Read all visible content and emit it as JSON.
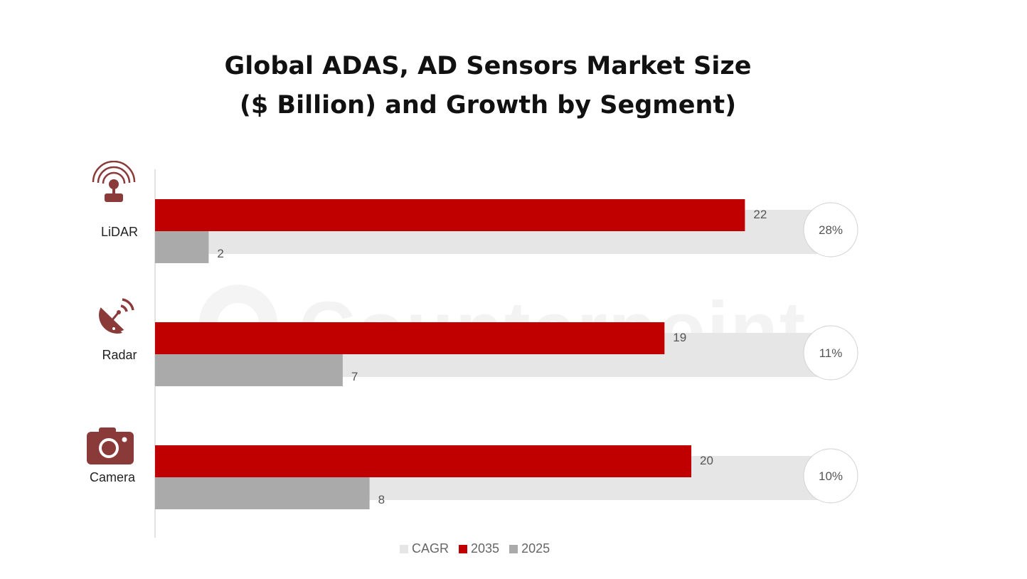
{
  "chart_data": {
    "type": "bar",
    "orientation": "horizontal",
    "title_line1": "Global ADAS, AD Sensors Market Size",
    "title_line2": "($ Billion) and Growth by Segment)",
    "categories": [
      "LiDAR",
      "Radar",
      "Camera"
    ],
    "series": [
      {
        "name": "2035",
        "values": [
          22,
          19,
          20
        ],
        "color": "#c00000"
      },
      {
        "name": "2025",
        "values": [
          2,
          7,
          8
        ],
        "color": "#aaaaaa"
      }
    ],
    "cagr": {
      "name": "CAGR",
      "labels": [
        "28%",
        "11%",
        "10%"
      ],
      "color": "#e6e6e6"
    },
    "legend": [
      "CAGR",
      "2035",
      "2025"
    ],
    "legend_position": "bottom",
    "grid": false,
    "icon_color": "#8b3a3a",
    "icons": [
      "lidar-icon",
      "radar-icon",
      "camera-icon"
    ],
    "watermark": "Counterpoint"
  }
}
